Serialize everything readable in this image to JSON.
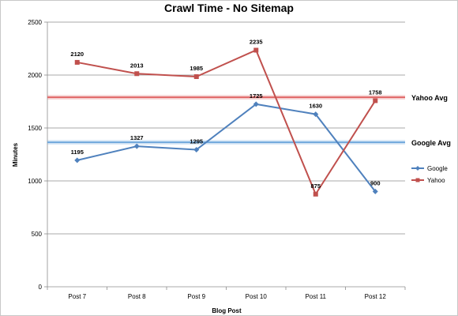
{
  "chart_data": {
    "type": "line",
    "title": "Crawl Time - No Sitemap",
    "xlabel": "Blog Post",
    "ylabel": "Minutes",
    "categories": [
      "Post 7",
      "Post 8",
      "Post 9",
      "Post 10",
      "Post 11",
      "Post 12"
    ],
    "ylim": [
      0,
      2500
    ],
    "yticks": [
      0,
      500,
      1000,
      1500,
      2000,
      2500
    ],
    "grid": true,
    "legend_position": "right",
    "series": [
      {
        "name": "Google",
        "values": [
          1195,
          1327,
          1295,
          1725,
          1630,
          900
        ],
        "color": "#4f81bd",
        "marker": "diamond"
      },
      {
        "name": "Yahoo",
        "values": [
          2120,
          2013,
          1985,
          2235,
          875,
          1758
        ],
        "color": "#c0504d",
        "marker": "square"
      }
    ],
    "reference_lines": [
      {
        "label": "Yahoo Avg",
        "value": 1790,
        "color": "#e06666"
      },
      {
        "label": "Google Avg",
        "value": 1365,
        "color": "#6fa8dc"
      }
    ]
  }
}
